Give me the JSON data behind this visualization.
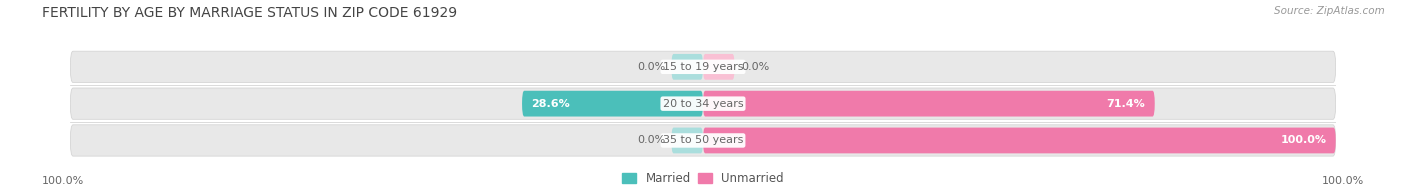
{
  "title": "FERTILITY BY AGE BY MARRIAGE STATUS IN ZIP CODE 61929",
  "source": "Source: ZipAtlas.com",
  "rows": [
    {
      "label": "15 to 19 years",
      "married": 0.0,
      "unmarried": 0.0
    },
    {
      "label": "20 to 34 years",
      "married": 28.6,
      "unmarried": 71.4
    },
    {
      "label": "35 to 50 years",
      "married": 0.0,
      "unmarried": 100.0
    }
  ],
  "married_color": "#4bbfba",
  "unmarried_color": "#f07aaa",
  "married_light": "#aadedd",
  "unmarried_light": "#f9c0d4",
  "bar_bg_color": "#e8e8e8",
  "bar_bg_color2": "#f0f0f0",
  "bg_color": "#ffffff",
  "title_fontsize": 10,
  "label_fontsize": 8,
  "value_fontsize": 8,
  "legend_fontsize": 8.5,
  "left_label": "100.0%",
  "right_label": "100.0%",
  "x_min": -100,
  "x_max": 100,
  "center_label_color": "#666666",
  "value_color": "#666666"
}
